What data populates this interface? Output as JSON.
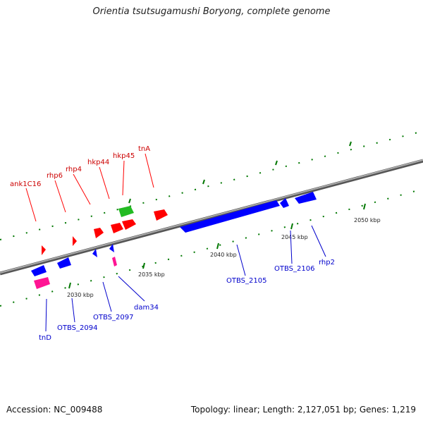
{
  "title": "Orientia tsutsugamushi Boryong, complete genome",
  "footer": {
    "accession": "Accession: NC_009488",
    "summary": "Topology: linear; Length: 2,127,051 bp; Genes: 1,219"
  },
  "colors": {
    "forward_gene": "#ff0000",
    "reverse_gene": "#0000ff",
    "rna_gene": "#ff1493",
    "other_gene": "#22bb22",
    "backbone": "#888888",
    "ticks": "#007700"
  },
  "scale_labels": [
    "2030 kbp",
    "2035 kbp",
    "2040 kbp",
    "2045 kbp",
    "2050 kbp"
  ],
  "forward_labels": [
    "ank1C16",
    "rhp6",
    "rhp4",
    "hkp44",
    "hkp45",
    "tnA"
  ],
  "reverse_labels": [
    "tnD",
    "OTBS_2094",
    "OTBS_2097",
    "dam34",
    "OTBS_2105",
    "OTBS_2106",
    "rhp2"
  ]
}
